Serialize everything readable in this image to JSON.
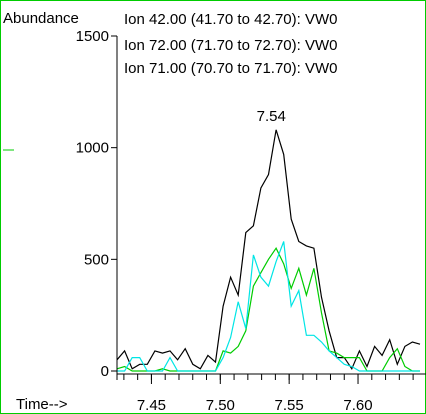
{
  "chart_data": {
    "type": "line",
    "ylabel": "Abundance",
    "xlabel": "Time-->",
    "xlim": [
      7.425,
      7.645
    ],
    "ylim": [
      -20,
      1530
    ],
    "x_ticks": [
      {
        "value": 7.45,
        "label": "7.45"
      },
      {
        "value": 7.5,
        "label": "7.50"
      },
      {
        "value": 7.55,
        "label": "7.55"
      },
      {
        "value": 7.6,
        "label": "7.60"
      }
    ],
    "x_minor_step": 0.01,
    "y_ticks": [
      {
        "value": 0,
        "label": "0"
      },
      {
        "value": 500,
        "label": "500"
      },
      {
        "value": 1000,
        "label": "1000"
      },
      {
        "value": 1500,
        "label": "1500"
      }
    ],
    "peak_annotation": {
      "x": 7.537,
      "y": 1080,
      "label": "7.54"
    },
    "series": [
      {
        "name": "Ion  42.00 (41.70 to 42.70): VW0",
        "color": "#000000",
        "points": [
          [
            7.425,
            50
          ],
          [
            7.4305,
            90
          ],
          [
            7.436,
            10
          ],
          [
            7.4415,
            30
          ],
          [
            7.447,
            30
          ],
          [
            7.4525,
            90
          ],
          [
            7.458,
            80
          ],
          [
            7.4635,
            90
          ],
          [
            7.469,
            50
          ],
          [
            7.4745,
            100
          ],
          [
            7.48,
            30
          ],
          [
            7.4855,
            10
          ],
          [
            7.491,
            70
          ],
          [
            7.4965,
            40
          ],
          [
            7.502,
            290
          ],
          [
            7.5075,
            420
          ],
          [
            7.513,
            340
          ],
          [
            7.5185,
            620
          ],
          [
            7.524,
            650
          ],
          [
            7.5295,
            820
          ],
          [
            7.535,
            880
          ],
          [
            7.5405,
            1080
          ],
          [
            7.546,
            970
          ],
          [
            7.5515,
            680
          ],
          [
            7.557,
            580
          ],
          [
            7.5625,
            560
          ],
          [
            7.568,
            550
          ],
          [
            7.5735,
            330
          ],
          [
            7.579,
            180
          ],
          [
            7.5845,
            60
          ],
          [
            7.59,
            60
          ],
          [
            7.5955,
            10
          ],
          [
            7.601,
            90
          ],
          [
            7.6065,
            20
          ],
          [
            7.612,
            110
          ],
          [
            7.6175,
            70
          ],
          [
            7.623,
            140
          ],
          [
            7.6285,
            30
          ],
          [
            7.634,
            110
          ],
          [
            7.6395,
            130
          ],
          [
            7.645,
            120
          ]
        ]
      },
      {
        "name": "Ion  72.00 (71.70 to 72.70): VW0",
        "color": "#00cc00",
        "points": [
          [
            7.425,
            10
          ],
          [
            7.4305,
            20
          ],
          [
            7.436,
            0
          ],
          [
            7.4415,
            0
          ],
          [
            7.447,
            0
          ],
          [
            7.4525,
            0
          ],
          [
            7.458,
            10
          ],
          [
            7.4635,
            0
          ],
          [
            7.469,
            0
          ],
          [
            7.4745,
            0
          ],
          [
            7.48,
            0
          ],
          [
            7.4855,
            0
          ],
          [
            7.491,
            0
          ],
          [
            7.4965,
            0
          ],
          [
            7.502,
            90
          ],
          [
            7.5075,
            80
          ],
          [
            7.513,
            110
          ],
          [
            7.5185,
            180
          ],
          [
            7.524,
            380
          ],
          [
            7.5295,
            440
          ],
          [
            7.535,
            500
          ],
          [
            7.5405,
            550
          ],
          [
            7.546,
            480
          ],
          [
            7.5515,
            370
          ],
          [
            7.557,
            460
          ],
          [
            7.5625,
            340
          ],
          [
            7.568,
            460
          ],
          [
            7.5735,
            260
          ],
          [
            7.579,
            90
          ],
          [
            7.5845,
            80
          ],
          [
            7.59,
            60
          ],
          [
            7.5955,
            60
          ],
          [
            7.601,
            60
          ],
          [
            7.6065,
            0
          ],
          [
            7.612,
            0
          ],
          [
            7.6175,
            0
          ],
          [
            7.623,
            60
          ],
          [
            7.6285,
            100
          ],
          [
            7.634,
            20
          ],
          [
            7.6395,
            0
          ],
          [
            7.645,
            0
          ]
        ]
      },
      {
        "name": "Ion  71.00 (70.70 to 71.70): VW0",
        "color": "#00e5e5",
        "points": [
          [
            7.425,
            0
          ],
          [
            7.4305,
            0
          ],
          [
            7.436,
            60
          ],
          [
            7.4415,
            60
          ],
          [
            7.447,
            0
          ],
          [
            7.4525,
            0
          ],
          [
            7.458,
            0
          ],
          [
            7.4635,
            60
          ],
          [
            7.469,
            0
          ],
          [
            7.4745,
            0
          ],
          [
            7.48,
            0
          ],
          [
            7.4855,
            0
          ],
          [
            7.491,
            0
          ],
          [
            7.4965,
            0
          ],
          [
            7.502,
            60
          ],
          [
            7.5075,
            150
          ],
          [
            7.513,
            310
          ],
          [
            7.5185,
            190
          ],
          [
            7.524,
            520
          ],
          [
            7.5295,
            420
          ],
          [
            7.535,
            380
          ],
          [
            7.5405,
            490
          ],
          [
            7.546,
            580
          ],
          [
            7.5515,
            290
          ],
          [
            7.557,
            360
          ],
          [
            7.5625,
            160
          ],
          [
            7.568,
            160
          ],
          [
            7.5735,
            130
          ],
          [
            7.579,
            90
          ],
          [
            7.5845,
            60
          ],
          [
            7.59,
            30
          ],
          [
            7.5955,
            20
          ],
          [
            7.601,
            0
          ],
          [
            7.6065,
            0
          ],
          [
            7.612,
            0
          ],
          [
            7.6175,
            0
          ],
          [
            7.623,
            0
          ],
          [
            7.6285,
            0
          ],
          [
            7.634,
            0
          ],
          [
            7.6395,
            0
          ],
          [
            7.645,
            0
          ]
        ]
      }
    ]
  }
}
